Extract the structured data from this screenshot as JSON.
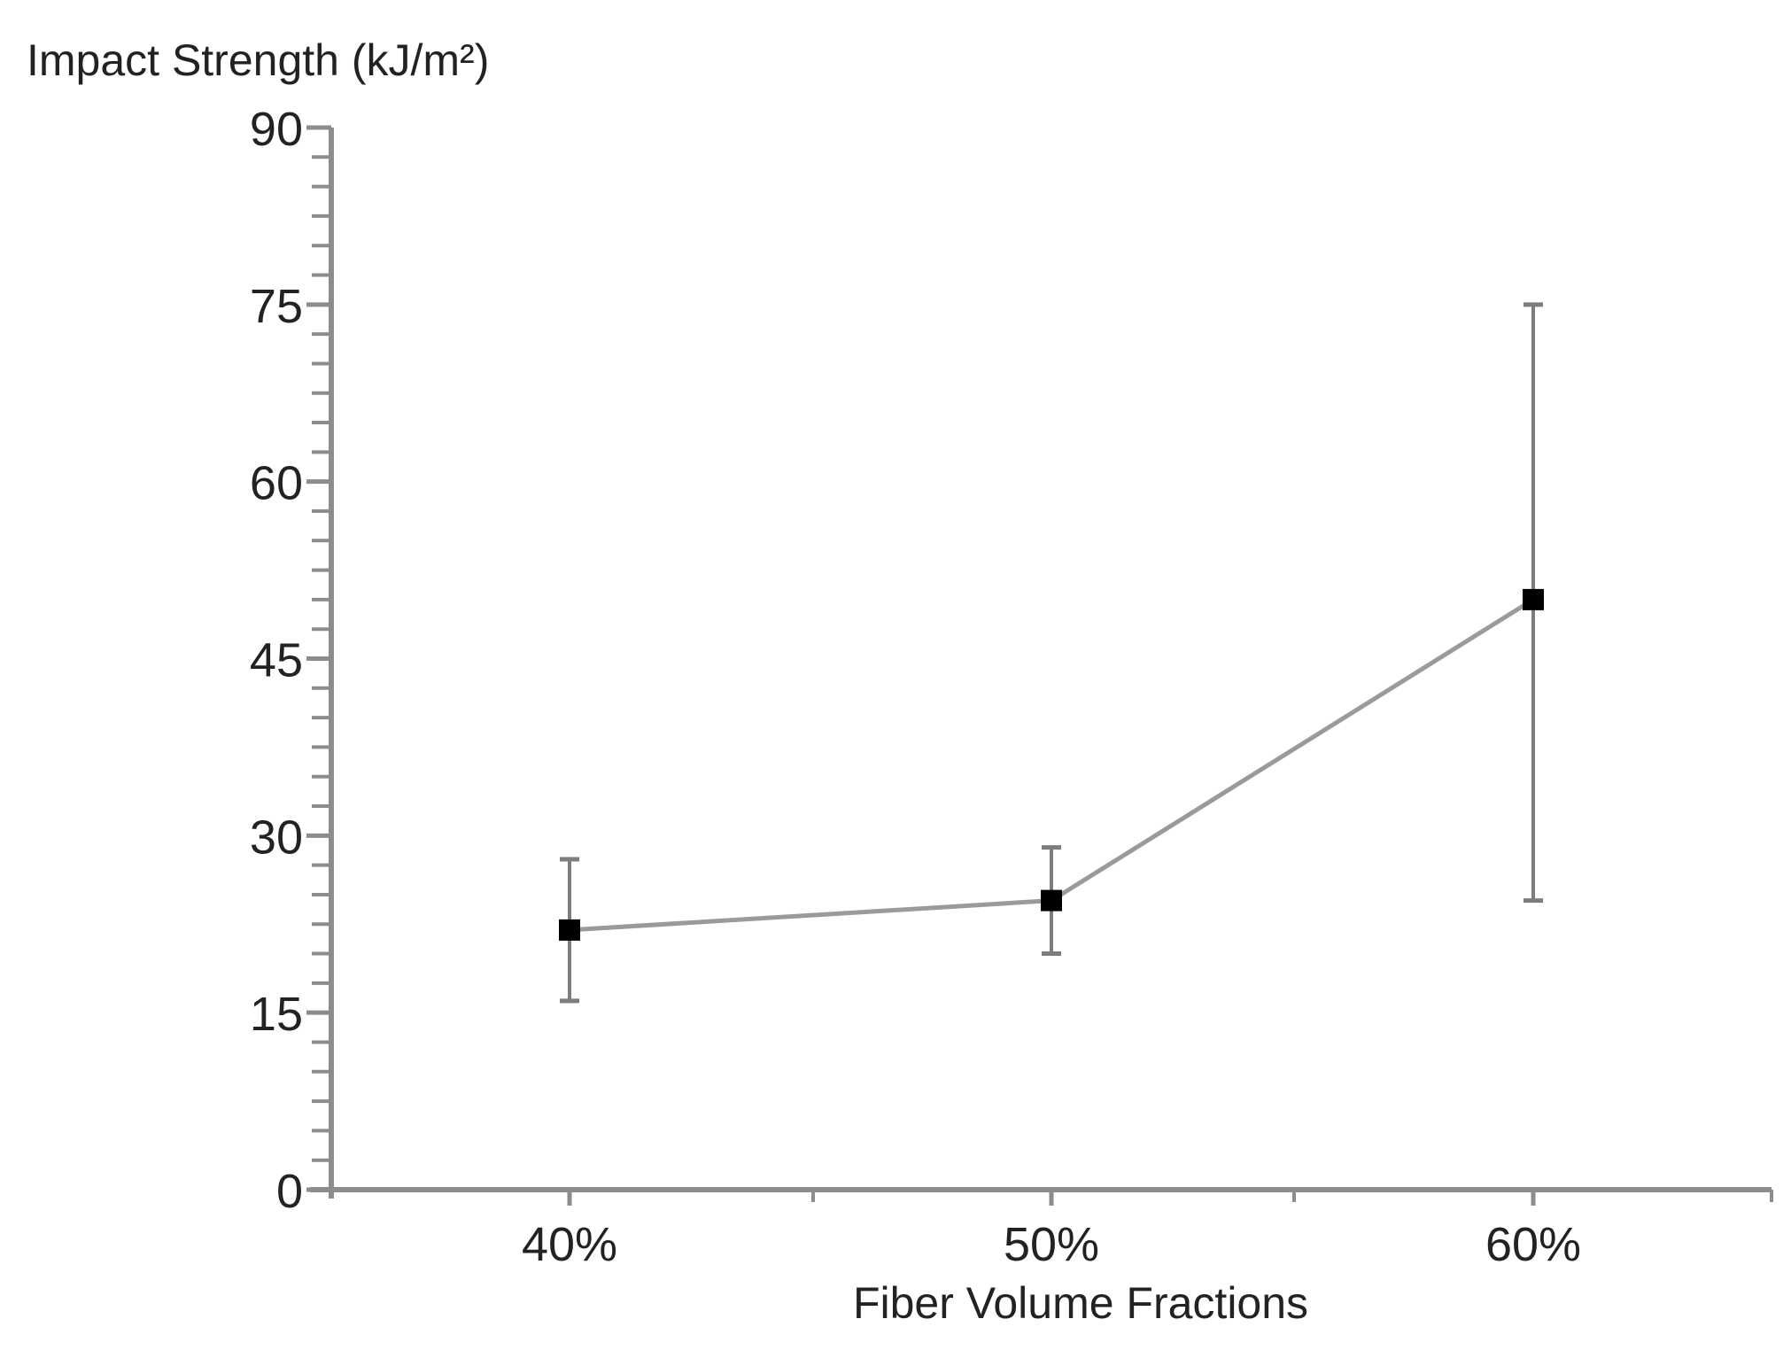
{
  "chart_data": {
    "type": "line",
    "title": "",
    "ylabel": "Impact Strength (kJ/m²)",
    "xlabel": "Fiber Volume Fractions",
    "categories": [
      "40%",
      "50%",
      "60%"
    ],
    "series": [
      {
        "name": "Impact Strength",
        "values": [
          22,
          24.5,
          50
        ],
        "error_low": [
          16,
          20,
          24.5
        ],
        "error_high": [
          28,
          29,
          75
        ]
      }
    ],
    "ylim": [
      0,
      90
    ],
    "yticks": [
      "0",
      "15",
      "30",
      "45",
      "60",
      "75",
      "90"
    ],
    "ytick_values": [
      0,
      15,
      30,
      45,
      60,
      75,
      90
    ],
    "y_minor_step": 2.5,
    "grid": false,
    "legend": "none",
    "colors": {
      "axis": "#8c8c8c",
      "line": "#9a9a9a",
      "marker": "#000000",
      "errorbar": "#7d7d7d",
      "text": "#222222"
    }
  }
}
